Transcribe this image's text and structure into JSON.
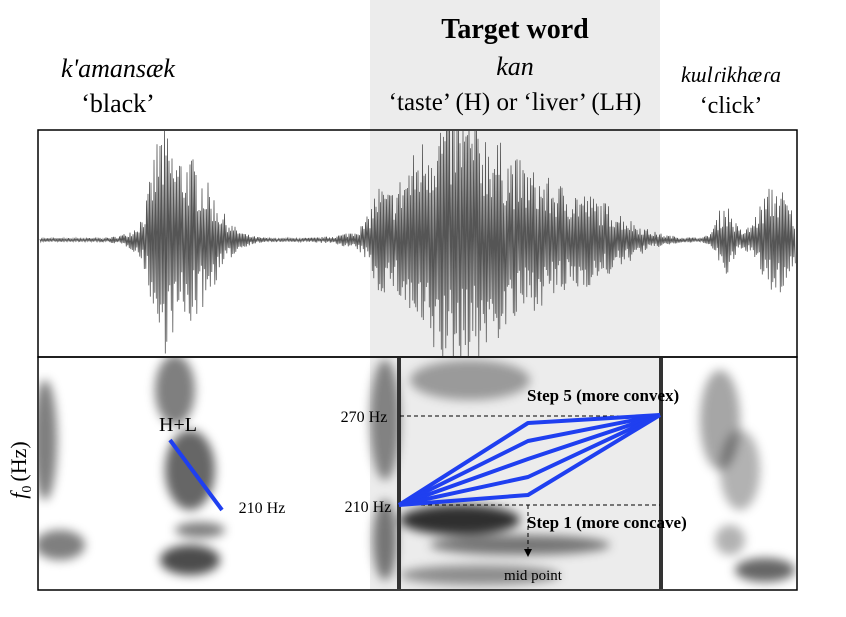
{
  "left_word": {
    "word": "k'amansæk",
    "gloss": "‘black’"
  },
  "target": {
    "heading": "Target word",
    "word": "kan",
    "gloss": "‘taste’ (H) or ‘liver’ (LH)"
  },
  "right_word": {
    "word": "kɯlɾikhæɾa",
    "gloss": "‘click’"
  },
  "y_axis_label": {
    "symbol": "f",
    "subscript": "0",
    "unit": "(Hz)"
  },
  "annotations": {
    "left_contour": "H+L",
    "left_end_freq": "210 Hz",
    "upper_freq": "270 Hz",
    "lower_freq": "210 Hz",
    "step_top": "Step 5 (more convex)",
    "step_bottom": "Step 1 (more concave)",
    "mid_point": "mid point"
  }
}
